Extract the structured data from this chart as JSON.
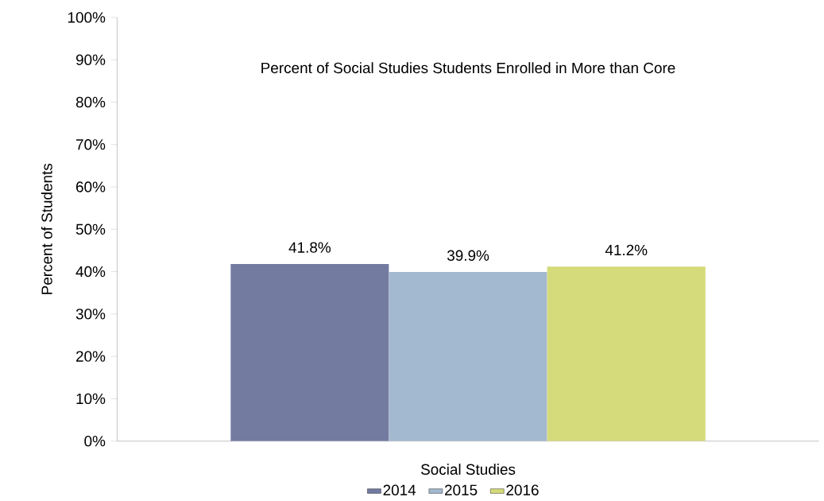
{
  "chart_data": {
    "type": "bar",
    "title": "Percent of Social Studies Students Enrolled in More than Core",
    "ylabel": "Percent of Students",
    "xlabel": null,
    "categories": [
      "Social Studies"
    ],
    "series": [
      {
        "name": "2014",
        "color": "#737ba1",
        "values": [
          41.8
        ],
        "value_labels": [
          "41.8%"
        ]
      },
      {
        "name": "2015",
        "color": "#a3b9cf",
        "values": [
          39.9
        ],
        "value_labels": [
          "39.9%"
        ]
      },
      {
        "name": "2016",
        "color": "#d5da7a",
        "values": [
          41.2
        ],
        "value_labels": [
          "41.2%"
        ]
      }
    ],
    "ylim": [
      0,
      100
    ],
    "yticks": [
      {
        "value": 0,
        "label": "0%"
      },
      {
        "value": 10,
        "label": "10%"
      },
      {
        "value": 20,
        "label": "20%"
      },
      {
        "value": 30,
        "label": "30%"
      },
      {
        "value": 40,
        "label": "40%"
      },
      {
        "value": 50,
        "label": "50%"
      },
      {
        "value": 60,
        "label": "60%"
      },
      {
        "value": 70,
        "label": "70%"
      },
      {
        "value": 80,
        "label": "80%"
      },
      {
        "value": 90,
        "label": "90%"
      },
      {
        "value": 100,
        "label": "100%"
      }
    ],
    "grid": false,
    "legend": "bottom"
  }
}
